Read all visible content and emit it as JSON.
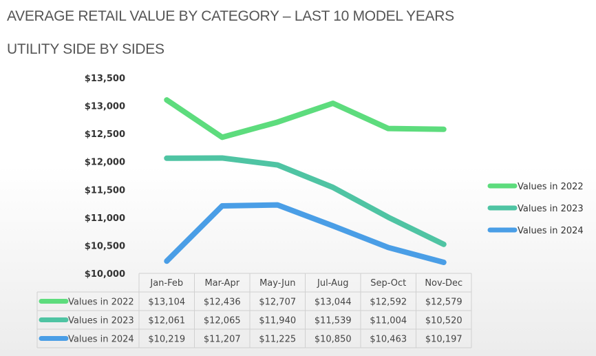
{
  "header": {
    "title": "AVERAGE RETAIL VALUE BY CATEGORY – LAST 10 MODEL YEARS",
    "subtitle": "UTILITY SIDE BY SIDES"
  },
  "chart_data": {
    "type": "line",
    "title": "",
    "xlabel": "",
    "ylabel": "",
    "categories": [
      "Jan-Feb",
      "Mar-Apr",
      "May-Jun",
      "Jul-Aug",
      "Sep-Oct",
      "Nov-Dec"
    ],
    "ylim": [
      10000,
      13500
    ],
    "yticks": [
      10000,
      10500,
      11000,
      11500,
      12000,
      12500,
      13000,
      13500
    ],
    "ytick_labels": [
      "$10,000",
      "$10,500",
      "$11,000",
      "$11,500",
      "$12,000",
      "$12,500",
      "$13,000",
      "$13,500"
    ],
    "grid": false,
    "legend_position": "right",
    "data_table": true,
    "series": [
      {
        "name": "Values in 2022",
        "color": "#5ddc7d",
        "values": [
          13104,
          12436,
          12707,
          13044,
          12592,
          12579
        ],
        "labels": [
          "$13,104",
          "$12,436",
          "$12,707",
          "$13,044",
          "$12,592",
          "$12,579"
        ]
      },
      {
        "name": "Values in 2023",
        "color": "#4fc4a3",
        "values": [
          12061,
          12065,
          11940,
          11539,
          11004,
          10520
        ],
        "labels": [
          "$12,061",
          "$12,065",
          "$11,940",
          "$11,539",
          "$11,004",
          "$10,520"
        ]
      },
      {
        "name": "Values in 2024",
        "color": "#4a9ee6",
        "values": [
          10219,
          11207,
          11225,
          10850,
          10463,
          10197
        ],
        "labels": [
          "$10,219",
          "$11,207",
          "$11,225",
          "$10,850",
          "$10,463",
          "$10,197"
        ]
      }
    ]
  }
}
